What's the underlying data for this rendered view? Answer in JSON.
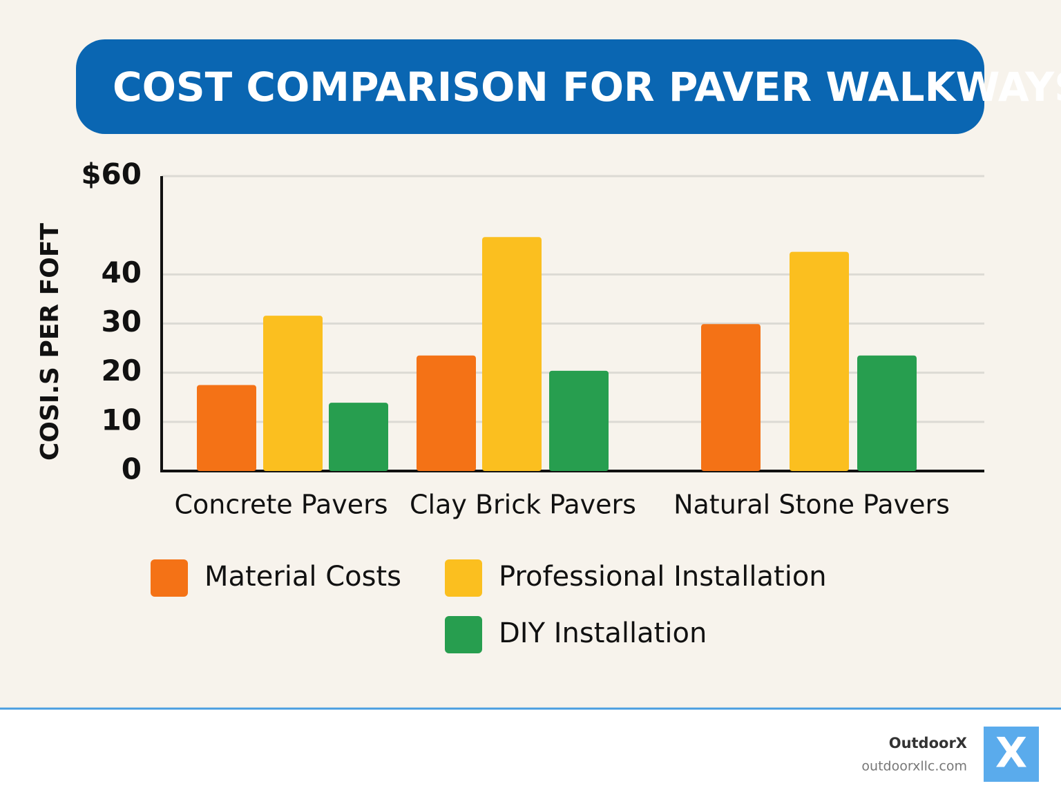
{
  "chart_data": {
    "type": "bar",
    "title": "COST COMPARISON FOR PAVER WALKWAYS",
    "y_label": "COSI.S PER FOFT",
    "categories": [
      "Concrete Pavers",
      "Clay Brick Pavers",
      "Natural Stone Pavers"
    ],
    "series": [
      {
        "name": "Material Costs",
        "color": "#f47216",
        "values": [
          17.5,
          23.5,
          29.9
        ]
      },
      {
        "name": "Professional Installation",
        "color": "#fbbf1f",
        "values": [
          31.6,
          47.6,
          44.6
        ]
      },
      {
        "name": "DIY Installation",
        "color": "#279e4f",
        "values": [
          13.9,
          20.4,
          23.5
        ]
      }
    ],
    "ylim": [
      0,
      60
    ],
    "yticks": [
      0,
      10,
      20,
      30,
      40,
      {
        "value": 60,
        "label": "$60"
      }
    ],
    "grid": true
  },
  "footer": {
    "brand": "OutdoorX",
    "url": "outdoorxllc.com",
    "logo": "X"
  }
}
